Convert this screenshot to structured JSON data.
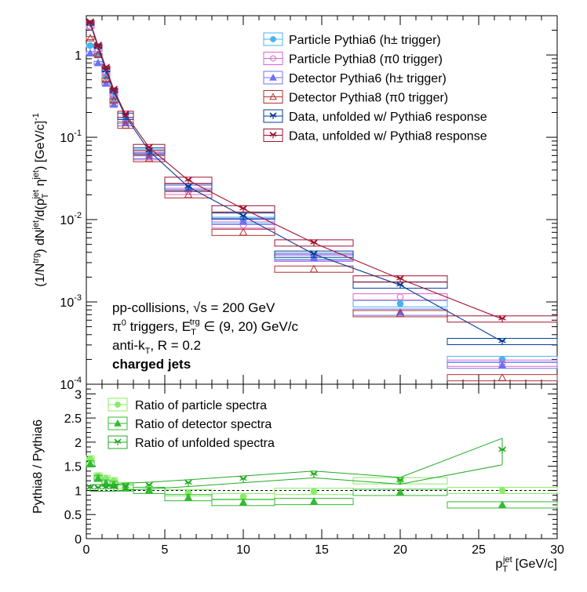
{
  "chart_data": [
    {
      "type": "scatter",
      "panel": "spectra",
      "xlim": [
        0,
        30
      ],
      "ylim": [
        0.0001,
        3
      ],
      "yscale": "log",
      "ylabel": "(1/N^trg) dN^jet/d(p_T^jet η^jet) [GeV/c]^-1",
      "y_ticks": [
        "10^-4",
        "10^-3",
        "10^-2",
        "10^-1",
        "1"
      ],
      "legend_position": "top-right",
      "annotations": [
        "pp-collisions, √s = 200 GeV",
        "π0 triggers, E_T^trg ∈ (9, 20) GeV/c",
        "anti-k_T, R = 0.2",
        "charged jets"
      ],
      "series": [
        {
          "name": "Particle Pythia6 (h± trigger)",
          "color": "#46b4f0",
          "marker": "circle-filled",
          "x": [
            0.25,
            0.75,
            1.25,
            1.75,
            2.5,
            4,
            6.5,
            10,
            14.5,
            20,
            26.5
          ],
          "y": [
            1.3,
            1.0,
            0.55,
            0.3,
            0.16,
            0.065,
            0.024,
            0.0098,
            0.0036,
            0.00095,
            0.0002
          ]
        },
        {
          "name": "Particle Pythia8 (π0 trigger)",
          "color": "#e060d0",
          "marker": "circle-open",
          "x": [
            0.25,
            0.75,
            1.25,
            1.75,
            2.5,
            4,
            6.5,
            10,
            14.5,
            20,
            26.5
          ],
          "y": [
            2.2,
            1.15,
            0.6,
            0.32,
            0.15,
            0.058,
            0.022,
            0.0086,
            0.0035,
            0.00115,
            0.00018
          ]
        },
        {
          "name": "Detector Pythia6 (h± trigger)",
          "color": "#7070f0",
          "marker": "triangle-filled",
          "x": [
            0.25,
            0.75,
            1.25,
            1.75,
            2.5,
            4,
            6.5,
            10,
            14.5,
            20,
            26.5
          ],
          "y": [
            1.05,
            0.8,
            0.45,
            0.25,
            0.15,
            0.06,
            0.024,
            0.0095,
            0.0034,
            0.00075,
            0.00017
          ]
        },
        {
          "name": "Detector Pythia8 (π0 trigger)",
          "color": "#b03030",
          "marker": "triangle-open",
          "x": [
            0.25,
            0.75,
            1.25,
            1.75,
            2.5,
            4,
            6.5,
            10,
            14.5,
            20,
            26.5
          ],
          "y": [
            1.6,
            1.0,
            0.5,
            0.28,
            0.14,
            0.055,
            0.02,
            0.007,
            0.0025,
            0.00072,
            0.00012
          ]
        },
        {
          "name": "Data, unfolded w/ Pythia6 response",
          "color": "#003c96",
          "marker": "star-filled",
          "x": [
            0.25,
            0.75,
            1.25,
            1.75,
            2.5,
            4,
            6.5,
            10,
            14.5,
            20,
            26.5
          ],
          "y": [
            2.4,
            1.25,
            0.65,
            0.36,
            0.18,
            0.068,
            0.025,
            0.011,
            0.0038,
            0.0016,
            0.00033
          ]
        },
        {
          "name": "Data, unfolded w/ Pythia8 response",
          "color": "#a01030",
          "marker": "star-open",
          "x": [
            0.25,
            0.75,
            1.25,
            1.75,
            2.5,
            4,
            6.5,
            10,
            14.5,
            20,
            26.5
          ],
          "y": [
            2.5,
            1.3,
            0.7,
            0.38,
            0.19,
            0.075,
            0.03,
            0.0135,
            0.0052,
            0.0019,
            0.00062
          ]
        }
      ]
    },
    {
      "type": "scatter",
      "panel": "ratio",
      "xlim": [
        0,
        30
      ],
      "ylim": [
        0,
        3.2
      ],
      "xlabel": "p_T^jet [GeV/c]",
      "ylabel": "Pythia8 / Pythia6",
      "x_ticks": [
        0,
        5,
        10,
        15,
        20,
        25,
        30
      ],
      "y_ticks": [
        0,
        0.5,
        1,
        1.5,
        2,
        2.5,
        3
      ],
      "reference_line": 1,
      "legend_position": "top-left",
      "series": [
        {
          "name": "Ratio of particle spectra",
          "color": "#88ee66",
          "marker": "circle-filled",
          "x": [
            0.25,
            0.75,
            1.25,
            1.75,
            2.5,
            4,
            6.5,
            10,
            14.5,
            20,
            26.5
          ],
          "y": [
            1.65,
            1.3,
            1.25,
            1.2,
            1.1,
            1.0,
            0.95,
            0.87,
            0.98,
            1.2,
            1.0
          ]
        },
        {
          "name": "Ratio of detector spectra",
          "color": "#33bb33",
          "marker": "triangle-filled",
          "x": [
            0.25,
            0.75,
            1.25,
            1.75,
            2.5,
            4,
            6.5,
            10,
            14.5,
            20,
            26.5
          ],
          "y": [
            1.55,
            1.25,
            1.15,
            1.12,
            1.05,
            1.0,
            0.85,
            0.75,
            0.77,
            0.96,
            0.7
          ]
        },
        {
          "name": "Ratio of unfolded spectra",
          "color": "#22aa22",
          "marker": "star-filled",
          "x": [
            0.25,
            0.75,
            1.25,
            1.75,
            2.5,
            4,
            6.5,
            10,
            14.5,
            20,
            26.5
          ],
          "y": [
            1.05,
            1.05,
            1.05,
            1.05,
            1.08,
            1.1,
            1.15,
            1.23,
            1.33,
            1.2,
            1.83
          ]
        }
      ]
    }
  ],
  "text": {
    "xlabel_main": "p",
    "xlabel_sub": "T",
    "xlabel_sup": "jet",
    "xlabel_unit": "[GeV/c]",
    "ratio_ylabel": "Pythia8 / Pythia6",
    "annot_line1": "pp-collisions, √s = 200 GeV",
    "annot_line2a": "π",
    "annot_line2b": "0",
    "annot_line2c": " triggers, E",
    "annot_line2d": "T",
    "annot_line2e": "trg",
    "annot_line2f": " ∈ (9, 20) GeV/c",
    "annot_line3a": "anti-k",
    "annot_line3b": "T",
    "annot_line3c": ", R = 0.2",
    "annot_line4": "charged jets",
    "ylabel_p1": "(1/N",
    "ylabel_p1sup": "trg",
    "ylabel_p2": ") dN",
    "ylabel_p2sup": "jet",
    "ylabel_p3": "/d(p",
    "ylabel_p3sub": "T",
    "ylabel_p3sup": "jet",
    "ylabel_p4": " η",
    "ylabel_p4sup": "jet",
    "ylabel_p5": ") [GeV/c]",
    "ylabel_p5sup": "-1"
  }
}
